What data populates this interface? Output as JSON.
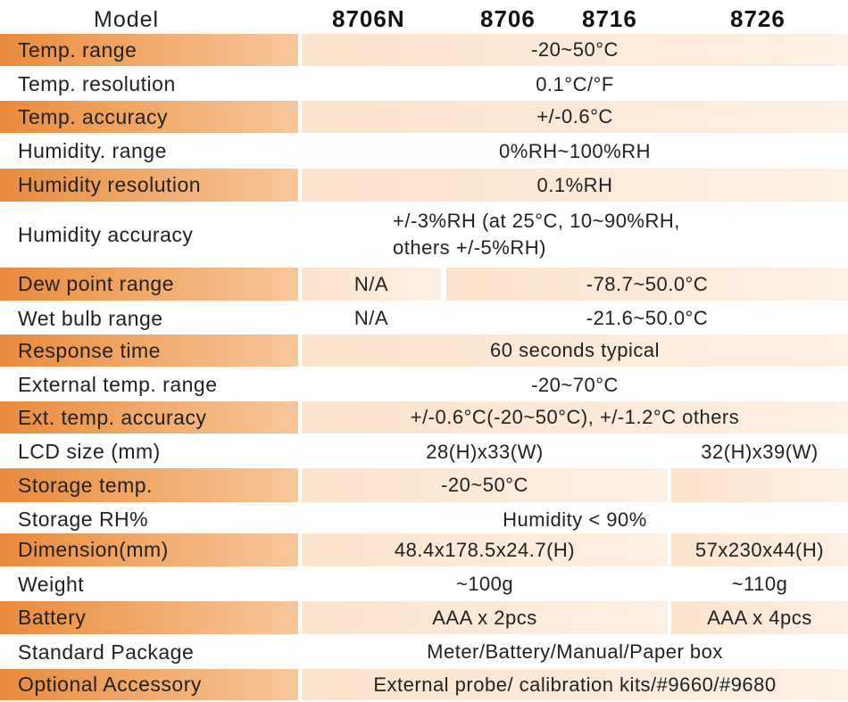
{
  "header": {
    "model_label": "Model",
    "columns": [
      "8706N",
      "8706",
      "8716",
      "8726"
    ]
  },
  "rows": [
    {
      "label": "Temp. range",
      "values": [
        "-20~50°C"
      ]
    },
    {
      "label": "Temp. resolution",
      "values": [
        "0.1°C/°F"
      ]
    },
    {
      "label": "Temp. accuracy",
      "values": [
        "+/-0.6°C"
      ]
    },
    {
      "label": "Humidity. range",
      "values": [
        "0%RH~100%RH"
      ]
    },
    {
      "label": "Humidity resolution",
      "values": [
        "0.1%RH"
      ]
    },
    {
      "label": "Humidity accuracy",
      "values": [
        "+/-3%RH (at 25°C, 10~90%RH,",
        "others +/-5%RH)"
      ]
    },
    {
      "label": "Dew point range",
      "values": [
        "N/A",
        "-78.7~50.0°C"
      ]
    },
    {
      "label": "Wet bulb range",
      "values": [
        "N/A",
        "-21.6~50.0°C"
      ]
    },
    {
      "label": "Response time",
      "values": [
        "60 seconds typical"
      ]
    },
    {
      "label": "External temp. range",
      "values": [
        "-20~70°C"
      ]
    },
    {
      "label": "Ext. temp. accuracy",
      "values": [
        "+/-0.6°C(-20~50°C), +/-1.2°C others"
      ]
    },
    {
      "label": "LCD size (mm)",
      "values": [
        "28(H)x33(W)",
        "32(H)x39(W)"
      ]
    },
    {
      "label": "Storage temp.",
      "values": [
        "-20~50°C"
      ]
    },
    {
      "label": "Storage RH%",
      "values": [
        "Humidity < 90%"
      ]
    },
    {
      "label": "Dimension(mm)",
      "values": [
        "48.4x178.5x24.7(H)",
        "57x230x44(H)"
      ]
    },
    {
      "label": "Weight",
      "values": [
        "~100g",
        "~110g"
      ]
    },
    {
      "label": "Battery",
      "values": [
        "AAA x 2pcs",
        "AAA x 4pcs"
      ]
    },
    {
      "label": "Standard Package",
      "values": [
        "Meter/Battery/Manual/Paper box"
      ]
    },
    {
      "label": "Optional Accessory",
      "values": [
        "External probe/ calibration kits/#9660/#9680"
      ]
    }
  ]
}
